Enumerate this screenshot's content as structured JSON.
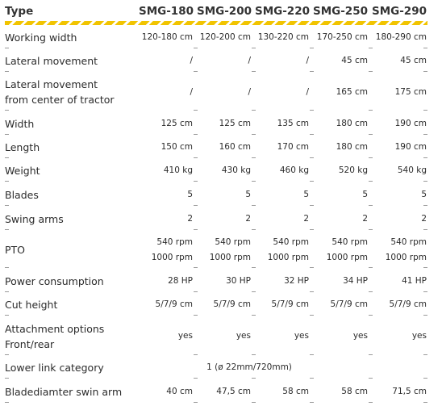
{
  "header": {
    "type_label": "Type",
    "models": [
      "SMG-180",
      "SMG-200",
      "SMG-220",
      "SMG-250",
      "SMG-290"
    ]
  },
  "rows": [
    {
      "label": [
        "Working width"
      ],
      "values": [
        [
          "120-180 cm"
        ],
        [
          "120-200 cm"
        ],
        [
          "130-220 cm"
        ],
        [
          "170-250 cm"
        ],
        [
          "180-290 cm"
        ]
      ]
    },
    {
      "label": [
        "Lateral movement"
      ],
      "values": [
        [
          "/"
        ],
        [
          "/"
        ],
        [
          "/"
        ],
        [
          "45 cm"
        ],
        [
          "45 cm"
        ]
      ]
    },
    {
      "label": [
        "Lateral movement",
        "from center of tractor"
      ],
      "values": [
        [
          "/"
        ],
        [
          "/"
        ],
        [
          "/"
        ],
        [
          "165 cm"
        ],
        [
          "175 cm"
        ]
      ]
    },
    {
      "label": [
        "Width"
      ],
      "values": [
        [
          "125 cm"
        ],
        [
          "125 cm"
        ],
        [
          "135 cm"
        ],
        [
          "180 cm"
        ],
        [
          "190 cm"
        ]
      ]
    },
    {
      "label": [
        "Length"
      ],
      "values": [
        [
          "150 cm"
        ],
        [
          "160 cm"
        ],
        [
          "170 cm"
        ],
        [
          "180 cm"
        ],
        [
          "190 cm"
        ]
      ]
    },
    {
      "label": [
        "Weight"
      ],
      "values": [
        [
          "410 kg"
        ],
        [
          "430 kg"
        ],
        [
          "460 kg"
        ],
        [
          "520 kg"
        ],
        [
          "540 kg"
        ]
      ]
    },
    {
      "label": [
        "Blades"
      ],
      "values": [
        [
          "5"
        ],
        [
          "5"
        ],
        [
          "5"
        ],
        [
          "5"
        ],
        [
          "5"
        ]
      ]
    },
    {
      "label": [
        "Swing arms"
      ],
      "values": [
        [
          "2"
        ],
        [
          "2"
        ],
        [
          "2"
        ],
        [
          "2"
        ],
        [
          "2"
        ]
      ]
    },
    {
      "label": [
        "PTO"
      ],
      "values": [
        [
          "540 rpm",
          "1000 rpm"
        ],
        [
          "540 rpm",
          "1000 rpm"
        ],
        [
          "540 rpm",
          "1000 rpm"
        ],
        [
          "540 rpm",
          "1000 rpm"
        ],
        [
          "540 rpm",
          "1000 rpm"
        ]
      ]
    },
    {
      "label": [
        "Power consumption"
      ],
      "values": [
        [
          "28 HP"
        ],
        [
          "30 HP"
        ],
        [
          "32 HP"
        ],
        [
          "34 HP"
        ],
        [
          "41 HP"
        ]
      ]
    },
    {
      "label": [
        "Cut height"
      ],
      "values": [
        [
          "5/7/9 cm"
        ],
        [
          "5/7/9 cm"
        ],
        [
          "5/7/9 cm"
        ],
        [
          "5/7/9 cm"
        ],
        [
          "5/7/9 cm"
        ]
      ]
    },
    {
      "label": [
        "Attachment options",
        "Front/rear"
      ],
      "values": [
        [
          "yes"
        ],
        [
          "yes"
        ],
        [
          "yes"
        ],
        [
          "yes"
        ],
        [
          "yes"
        ]
      ]
    },
    {
      "label": [
        "Lower link category"
      ],
      "span_value": "1 (ø 22mm/720mm)"
    },
    {
      "label": [
        "Bladediamter swin arm"
      ],
      "values": [
        [
          "40 cm"
        ],
        [
          "47,5 cm"
        ],
        [
          "58 cm"
        ],
        [
          "58 cm"
        ],
        [
          "71,5 cm"
        ]
      ]
    }
  ],
  "colors": {
    "accent_stripe": "#f1c400",
    "text": "#2b2b2b",
    "separator": "#9a9a9a"
  }
}
